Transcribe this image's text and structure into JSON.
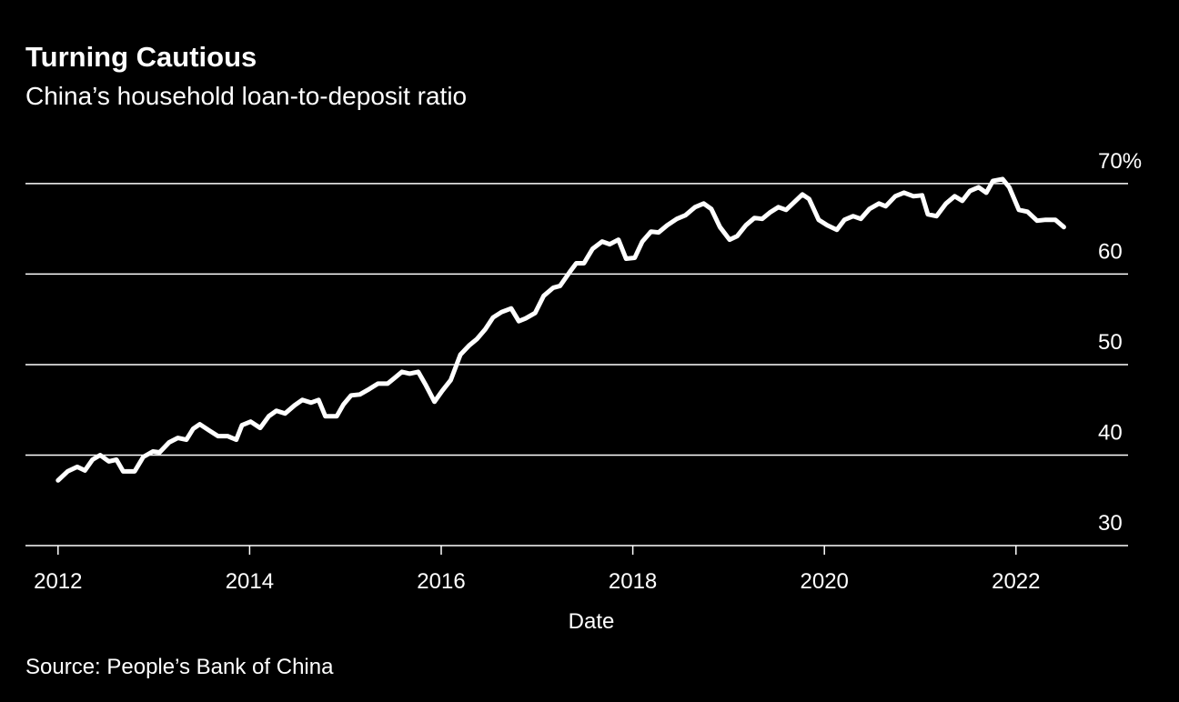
{
  "chart_data": {
    "type": "line",
    "title": "Turning Cautious",
    "subtitle": "China’s household loan-to-deposit ratio",
    "xlabel": "Date",
    "source": "Source: People’s Bank of China",
    "color": "#ffffff",
    "grid": true,
    "x": [
      2012.0,
      2012.1,
      2012.2,
      2012.28,
      2012.36,
      2012.44,
      2012.53,
      2012.61,
      2012.68,
      2012.8,
      2012.89,
      2012.99,
      2013.06,
      2013.16,
      2013.25,
      2013.34,
      2013.41,
      2013.48,
      2013.58,
      2013.67,
      2013.77,
      2013.86,
      2013.92,
      2014.01,
      2014.11,
      2014.2,
      2014.28,
      2014.37,
      2014.47,
      2014.55,
      2014.64,
      2014.72,
      2014.79,
      2014.91,
      2014.98,
      2015.06,
      2015.15,
      2015.25,
      2015.34,
      2015.44,
      2015.51,
      2015.59,
      2015.67,
      2015.76,
      2015.84,
      2015.93,
      2016.01,
      2016.1,
      2016.2,
      2016.29,
      2016.37,
      2016.46,
      2016.54,
      2016.63,
      2016.73,
      2016.81,
      2016.88,
      2016.98,
      2017.07,
      2017.17,
      2017.24,
      2017.34,
      2017.41,
      2017.49,
      2017.58,
      2017.68,
      2017.76,
      2017.85,
      2017.93,
      2018.02,
      2018.1,
      2018.19,
      2018.27,
      2018.36,
      2018.46,
      2018.55,
      2018.65,
      2018.74,
      2018.82,
      2018.91,
      2019.01,
      2019.09,
      2019.18,
      2019.27,
      2019.35,
      2019.43,
      2019.52,
      2019.6,
      2019.67,
      2019.77,
      2019.84,
      2019.94,
      2020.03,
      2020.13,
      2020.21,
      2020.3,
      2020.38,
      2020.47,
      2020.57,
      2020.64,
      2020.74,
      2020.83,
      2020.93,
      2021.02,
      2021.08,
      2021.17,
      2021.27,
      2021.36,
      2021.44,
      2021.52,
      2021.61,
      2021.69,
      2021.76,
      2021.86,
      2021.93,
      2022.03,
      2022.12,
      2022.22,
      2022.31,
      2022.41,
      2022.5
    ],
    "values": [
      37.2,
      38.2,
      38.7,
      38.3,
      39.5,
      40.0,
      39.3,
      39.5,
      38.2,
      38.2,
      39.8,
      40.4,
      40.3,
      41.4,
      41.9,
      41.7,
      42.9,
      43.4,
      42.7,
      42.1,
      42.1,
      41.7,
      43.3,
      43.7,
      43.0,
      44.3,
      44.9,
      44.6,
      45.5,
      46.1,
      45.8,
      46.1,
      44.3,
      44.3,
      45.6,
      46.6,
      46.7,
      47.3,
      47.9,
      47.9,
      48.5,
      49.2,
      49.0,
      49.2,
      47.7,
      45.9,
      47.1,
      48.3,
      51.1,
      52.1,
      52.8,
      53.9,
      55.2,
      55.8,
      56.2,
      54.8,
      55.1,
      55.7,
      57.6,
      58.5,
      58.7,
      60.2,
      61.2,
      61.2,
      62.8,
      63.6,
      63.3,
      63.8,
      61.7,
      61.8,
      63.6,
      64.7,
      64.6,
      65.4,
      66.1,
      66.5,
      67.4,
      67.8,
      67.2,
      65.2,
      63.8,
      64.2,
      65.4,
      66.2,
      66.1,
      66.8,
      67.4,
      67.1,
      67.8,
      68.8,
      68.3,
      66.0,
      65.4,
      64.9,
      66.0,
      66.4,
      66.1,
      67.2,
      67.8,
      67.5,
      68.6,
      69.0,
      68.6,
      68.7,
      66.6,
      66.4,
      67.8,
      68.6,
      68.1,
      69.2,
      69.6,
      69.0,
      70.3,
      70.5,
      69.6,
      67.1,
      66.9,
      65.9,
      66.0,
      66.0,
      65.2
    ],
    "xlim": [
      2011.66,
      2023.17
    ],
    "xticks": [
      2012,
      2014,
      2016,
      2018,
      2020,
      2022
    ],
    "ylim": [
      30,
      72
    ],
    "yticks": [
      30,
      40,
      50,
      60,
      {
        "value": 70,
        "label": "70%"
      }
    ]
  }
}
